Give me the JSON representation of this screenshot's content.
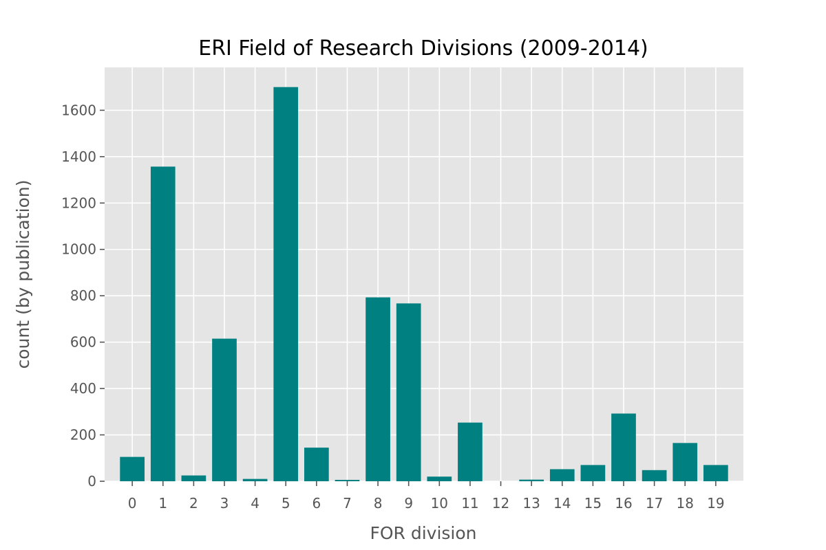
{
  "chart_data": {
    "type": "bar",
    "title": "ERI Field of Research Divisions (2009-2014)",
    "xlabel": "FOR division",
    "ylabel": "count (by publication)",
    "categories": [
      "0",
      "1",
      "2",
      "3",
      "4",
      "5",
      "6",
      "7",
      "8",
      "9",
      "10",
      "11",
      "12",
      "13",
      "14",
      "15",
      "16",
      "17",
      "18",
      "19"
    ],
    "values": [
      105,
      1357,
      25,
      615,
      10,
      1700,
      145,
      6,
      793,
      767,
      20,
      253,
      0,
      7,
      52,
      70,
      292,
      48,
      165,
      70
    ],
    "yticks": [
      0,
      200,
      400,
      600,
      800,
      1000,
      1200,
      1400,
      1600
    ],
    "ylim": [
      0,
      1785
    ],
    "xlim": [
      -0.9,
      19.9
    ],
    "grid": true,
    "bar_color": "#008080",
    "background_color": "#e5e5e5",
    "grid_color": "#ffffff"
  }
}
